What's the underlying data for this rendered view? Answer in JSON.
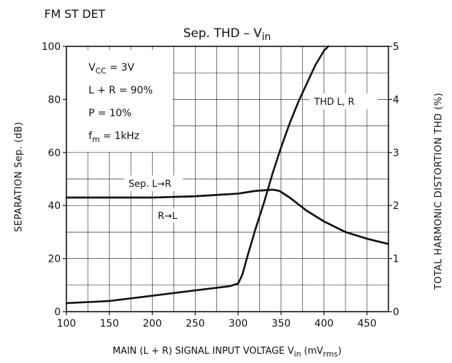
{
  "header": "FM ST DET",
  "chart_data": {
    "type": "line",
    "title": {
      "main": "Sep. THD  –  V",
      "sub": "in"
    },
    "xlabel": {
      "main": "MAIN (L + R) SIGNAL INPUT VOLTAGE   V",
      "sub": "in",
      "unit_open": "   (mV",
      "unit_sub": "rms",
      "unit_close": ")"
    },
    "ylabel_left": "SEPARATION   Sep.   (dB)",
    "ylabel_right": "TOTAL HARMONIC DISTORTION   THD     (%)",
    "x_ticks": [
      "100",
      "150",
      "200",
      "250",
      "300",
      "350",
      "400",
      "450"
    ],
    "y_left_ticks": [
      "0",
      "20",
      "40",
      "60",
      "80",
      "100"
    ],
    "y_right_ticks": [
      "0",
      "1",
      "2",
      "3",
      "4",
      "5"
    ],
    "xlim": [
      100,
      475
    ],
    "ylim_left": [
      0,
      100
    ],
    "ylim_right": [
      0,
      5
    ],
    "x_minor_step": 25,
    "y_minor_step": 10,
    "conditions": [
      {
        "main": "V",
        "sub": "CC",
        "rest": " = 3V"
      },
      {
        "main": "L + R = 90%",
        "sub": "",
        "rest": ""
      },
      {
        "main": "P = 10%",
        "sub": "",
        "rest": ""
      },
      {
        "main": "f",
        "sub": "m",
        "rest": " = 1kHz"
      }
    ],
    "series": [
      {
        "name": "Sep. L→R",
        "axis": "left",
        "x": [
          100,
          150,
          200,
          250,
          300,
          320,
          340,
          348,
          360,
          380,
          400,
          425,
          450,
          475
        ],
        "y": [
          43,
          43,
          43,
          43.5,
          44.5,
          45.5,
          46,
          45.5,
          43,
          38,
          34,
          30,
          27.5,
          25.5
        ]
      },
      {
        "name": "R→L",
        "axis": "left",
        "x": [
          100,
          150,
          200,
          250,
          300,
          320,
          340,
          348,
          360,
          380,
          400,
          425,
          450,
          475
        ],
        "y": [
          43,
          43,
          43,
          43.5,
          44.5,
          45.5,
          46,
          45.5,
          43,
          38,
          34,
          30,
          27.5,
          25.5
        ]
      },
      {
        "name": "THD L, R",
        "axis": "right",
        "x": [
          100,
          150,
          200,
          250,
          290,
          300,
          305,
          310,
          320,
          330,
          340,
          350,
          360,
          370,
          380,
          390,
          400,
          405
        ],
        "y": [
          0.16,
          0.2,
          0.3,
          0.4,
          0.48,
          0.53,
          0.7,
          1.0,
          1.55,
          2.05,
          2.6,
          3.1,
          3.55,
          3.95,
          4.3,
          4.65,
          4.92,
          5.0
        ]
      }
    ],
    "grid": true,
    "legend": "inline labels"
  }
}
